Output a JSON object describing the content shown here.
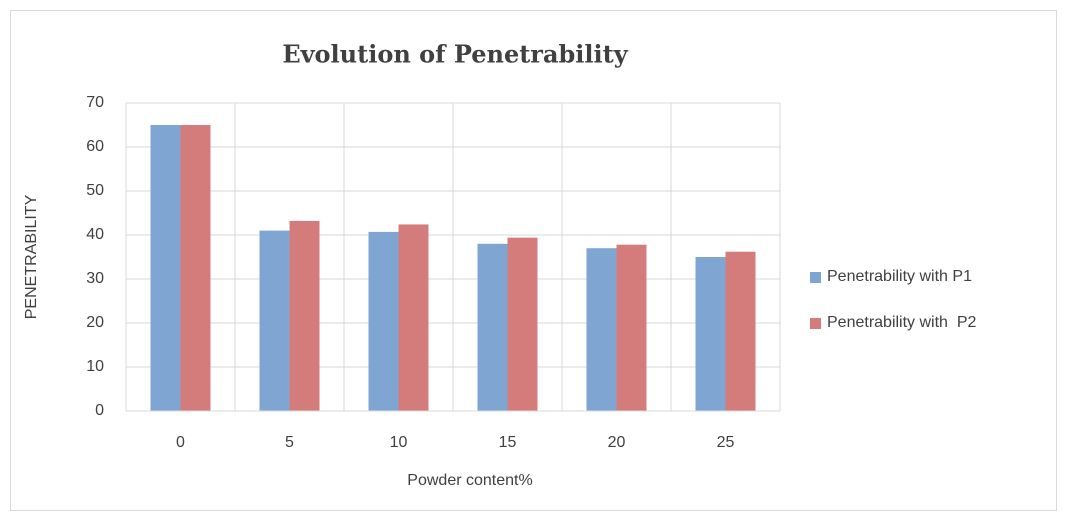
{
  "chart_data": {
    "type": "bar",
    "title": "Evolution of Penetrability",
    "x_label": "Powder content%",
    "y_label": "PENETRABILITY",
    "categories": [
      "0",
      "5",
      "10",
      "15",
      "20",
      "25"
    ],
    "series": [
      {
        "name": "Penetrability with P1",
        "color": "#7fa6d2",
        "values": [
          65,
          41,
          40.7,
          38,
          37,
          35
        ]
      },
      {
        "name": "Penetrability with  P2",
        "color": "#d47c7c",
        "values": [
          65,
          43.2,
          42.4,
          39.4,
          37.8,
          36.2
        ]
      }
    ],
    "ylim": [
      0,
      70
    ],
    "yticks": [
      0,
      10,
      20,
      30,
      40,
      50,
      60,
      70
    ],
    "grid": true,
    "legend": "right"
  }
}
